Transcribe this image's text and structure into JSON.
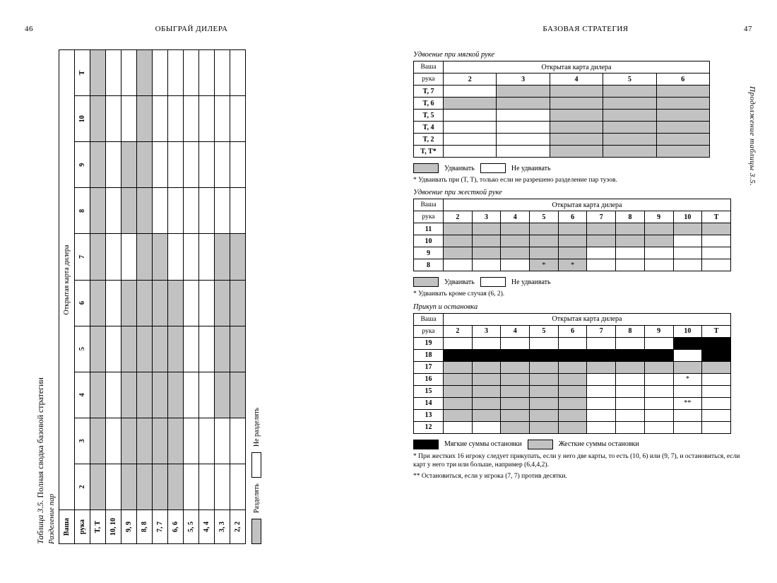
{
  "page_left": {
    "number": "46",
    "running_head": "ОБЫГРАЙ ДИЛЕРА"
  },
  "page_right": {
    "number": "47",
    "running_head": "БАЗОВАЯ СТРАТЕГИЯ"
  },
  "colors": {
    "shade": "#c2c2c2",
    "black": "#000000",
    "white": "#ffffff"
  },
  "left_table": {
    "caption_prefix": "Таблица 3.5.",
    "caption_text": "Полная сводка базовой стратегии",
    "subcaption": "Разделение пар",
    "hand_header_l1": "Ваша",
    "hand_header_l2": "рука",
    "dealer_header": "Открытая карта дилера",
    "dealer_cols": [
      "2",
      "3",
      "4",
      "5",
      "6",
      "7",
      "8",
      "9",
      "10",
      "T"
    ],
    "rows": [
      {
        "label": "T, T",
        "cells": [
          "g",
          "g",
          "g",
          "g",
          "g",
          "g",
          "g",
          "g",
          "g",
          "g"
        ]
      },
      {
        "label": "10, 10",
        "cells": [
          "w",
          "w",
          "w",
          "w",
          "w",
          "w",
          "w",
          "w",
          "w",
          "w"
        ]
      },
      {
        "label": "9, 9",
        "cells": [
          "g",
          "g",
          "g",
          "g",
          "g",
          "w",
          "g",
          "g",
          "w",
          "w"
        ]
      },
      {
        "label": "8, 8",
        "cells": [
          "g",
          "g",
          "g",
          "g",
          "g",
          "g",
          "g",
          "g",
          "g",
          "g"
        ]
      },
      {
        "label": "7, 7",
        "cells": [
          "g",
          "g",
          "g",
          "g",
          "g",
          "g",
          "w",
          "w",
          "w",
          "w"
        ]
      },
      {
        "label": "6, 6",
        "cells": [
          "g",
          "g",
          "g",
          "g",
          "g",
          "w",
          "w",
          "w",
          "w",
          "w"
        ]
      },
      {
        "label": "5, 5",
        "cells": [
          "w",
          "w",
          "w",
          "w",
          "w",
          "w",
          "w",
          "w",
          "w",
          "w"
        ]
      },
      {
        "label": "4, 4",
        "cells": [
          "w",
          "w",
          "w",
          "w",
          "w",
          "w",
          "w",
          "w",
          "w",
          "w"
        ]
      },
      {
        "label": "3, 3",
        "cells": [
          "w",
          "w",
          "g",
          "g",
          "g",
          "g",
          "w",
          "w",
          "w",
          "w"
        ]
      },
      {
        "label": "2, 2",
        "cells": [
          "w",
          "w",
          "g",
          "g",
          "g",
          "g",
          "w",
          "w",
          "w",
          "w"
        ]
      }
    ],
    "legend_split": "Разделять",
    "legend_nosplit": "Не разделять"
  },
  "right": {
    "continuation_note": "Продолжение таблицы 3.5.",
    "soft_double": {
      "title": "Удвоение при мягкой руке",
      "hand_header_l1": "Ваша",
      "hand_header_l2": "рука",
      "dealer_header": "Открытая карта дилера",
      "dealer_cols": [
        "2",
        "3",
        "4",
        "5",
        "6"
      ],
      "rows": [
        {
          "label": "T, 7",
          "cells": [
            "w",
            "g",
            "g",
            "g",
            "g"
          ]
        },
        {
          "label": "T, 6",
          "cells": [
            "g",
            "g",
            "g",
            "g",
            "g"
          ]
        },
        {
          "label": "T, 5",
          "cells": [
            "w",
            "w",
            "g",
            "g",
            "g"
          ]
        },
        {
          "label": "T, 4",
          "cells": [
            "w",
            "w",
            "g",
            "g",
            "g"
          ]
        },
        {
          "label": "T, 2",
          "cells": [
            "w",
            "w",
            "g",
            "g",
            "g"
          ]
        },
        {
          "label": "T, T*",
          "cells": [
            "w",
            "w",
            "g",
            "g",
            "g"
          ]
        }
      ],
      "legend_do": "Удваивать",
      "legend_dont": "Не удваивать",
      "footnote": "* Удваивать при (T, T), только если не разрешено разделение пар тузов."
    },
    "hard_double": {
      "title": "Удвоение при жесткой руке",
      "hand_header_l1": "Ваша",
      "hand_header_l2": "рука",
      "dealer_header": "Открытая карта дилера",
      "dealer_cols": [
        "2",
        "3",
        "4",
        "5",
        "6",
        "7",
        "8",
        "9",
        "10",
        "T"
      ],
      "rows": [
        {
          "label": "11",
          "cells": [
            "g",
            "g",
            "g",
            "g",
            "g",
            "g",
            "g",
            "g",
            "g",
            "g"
          ]
        },
        {
          "label": "10",
          "cells": [
            "g",
            "g",
            "g",
            "g",
            "g",
            "g",
            "g",
            "g",
            "w",
            "w"
          ]
        },
        {
          "label": "9",
          "cells": [
            "g",
            "g",
            "g",
            "g",
            "g",
            "w",
            "w",
            "w",
            "w",
            "w"
          ]
        },
        {
          "label": "8",
          "cells": [
            "w",
            "w",
            "w",
            "g*",
            "g*",
            "w",
            "w",
            "w",
            "w",
            "w"
          ]
        }
      ],
      "legend_do": "Удваивать",
      "legend_dont": "Не удваивать",
      "footnote": "* Удваивать кроме случая (6, 2)."
    },
    "hit_stand": {
      "title": "Прикуп и остановка",
      "hand_header_l1": "Ваша",
      "hand_header_l2": "рука",
      "dealer_header": "Открытая карта дилера",
      "dealer_cols": [
        "2",
        "3",
        "4",
        "5",
        "6",
        "7",
        "8",
        "9",
        "10",
        "T"
      ],
      "rows": [
        {
          "label": "19",
          "cells": [
            "w",
            "w",
            "w",
            "w",
            "w",
            "w",
            "w",
            "w",
            "k",
            "k"
          ]
        },
        {
          "label": "18",
          "cells": [
            "k",
            "k",
            "k",
            "k",
            "k",
            "k",
            "k",
            "k",
            "w",
            "k"
          ]
        },
        {
          "label": "17",
          "cells": [
            "g",
            "g",
            "g",
            "g",
            "g",
            "g",
            "g",
            "g",
            "g",
            "g"
          ]
        },
        {
          "label": "16",
          "cells": [
            "g",
            "g",
            "g",
            "g",
            "g",
            "w",
            "w",
            "w",
            "w*",
            "w"
          ]
        },
        {
          "label": "15",
          "cells": [
            "g",
            "g",
            "g",
            "g",
            "g",
            "w",
            "w",
            "w",
            "w",
            "w"
          ]
        },
        {
          "label": "14",
          "cells": [
            "g",
            "g",
            "g",
            "g",
            "g",
            "w",
            "w",
            "w",
            "w**",
            "w"
          ]
        },
        {
          "label": "13",
          "cells": [
            "g",
            "g",
            "g",
            "g",
            "g",
            "w",
            "w",
            "w",
            "w",
            "w"
          ]
        },
        {
          "label": "12",
          "cells": [
            "w",
            "w",
            "g",
            "g",
            "g",
            "w",
            "w",
            "w",
            "w",
            "w"
          ]
        }
      ],
      "legend_soft": "Мягкие суммы остановки",
      "legend_hard": "Жесткие суммы остановки",
      "footnote1": "* При жестких 16 игроку следует прикупать, если у него две карты, то есть (10, 6) или (9, 7), и остановиться, если карт у него три или больше, например (6,4,4,2).",
      "footnote2": "** Остановиться, если у игрока (7, 7) против десятки."
    }
  }
}
